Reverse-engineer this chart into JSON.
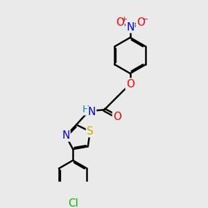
{
  "bg_color": "#eaeaea",
  "bond_color": "#000000",
  "bond_width": 1.8,
  "atom_colors": {
    "O": "#ff0000",
    "N": "#0000ff",
    "S": "#ccaa00",
    "Cl": "#00bb00",
    "H": "#008888",
    "C": "#000000"
  },
  "font_size": 10,
  "figsize": [
    3.0,
    3.0
  ],
  "dpi": 100
}
